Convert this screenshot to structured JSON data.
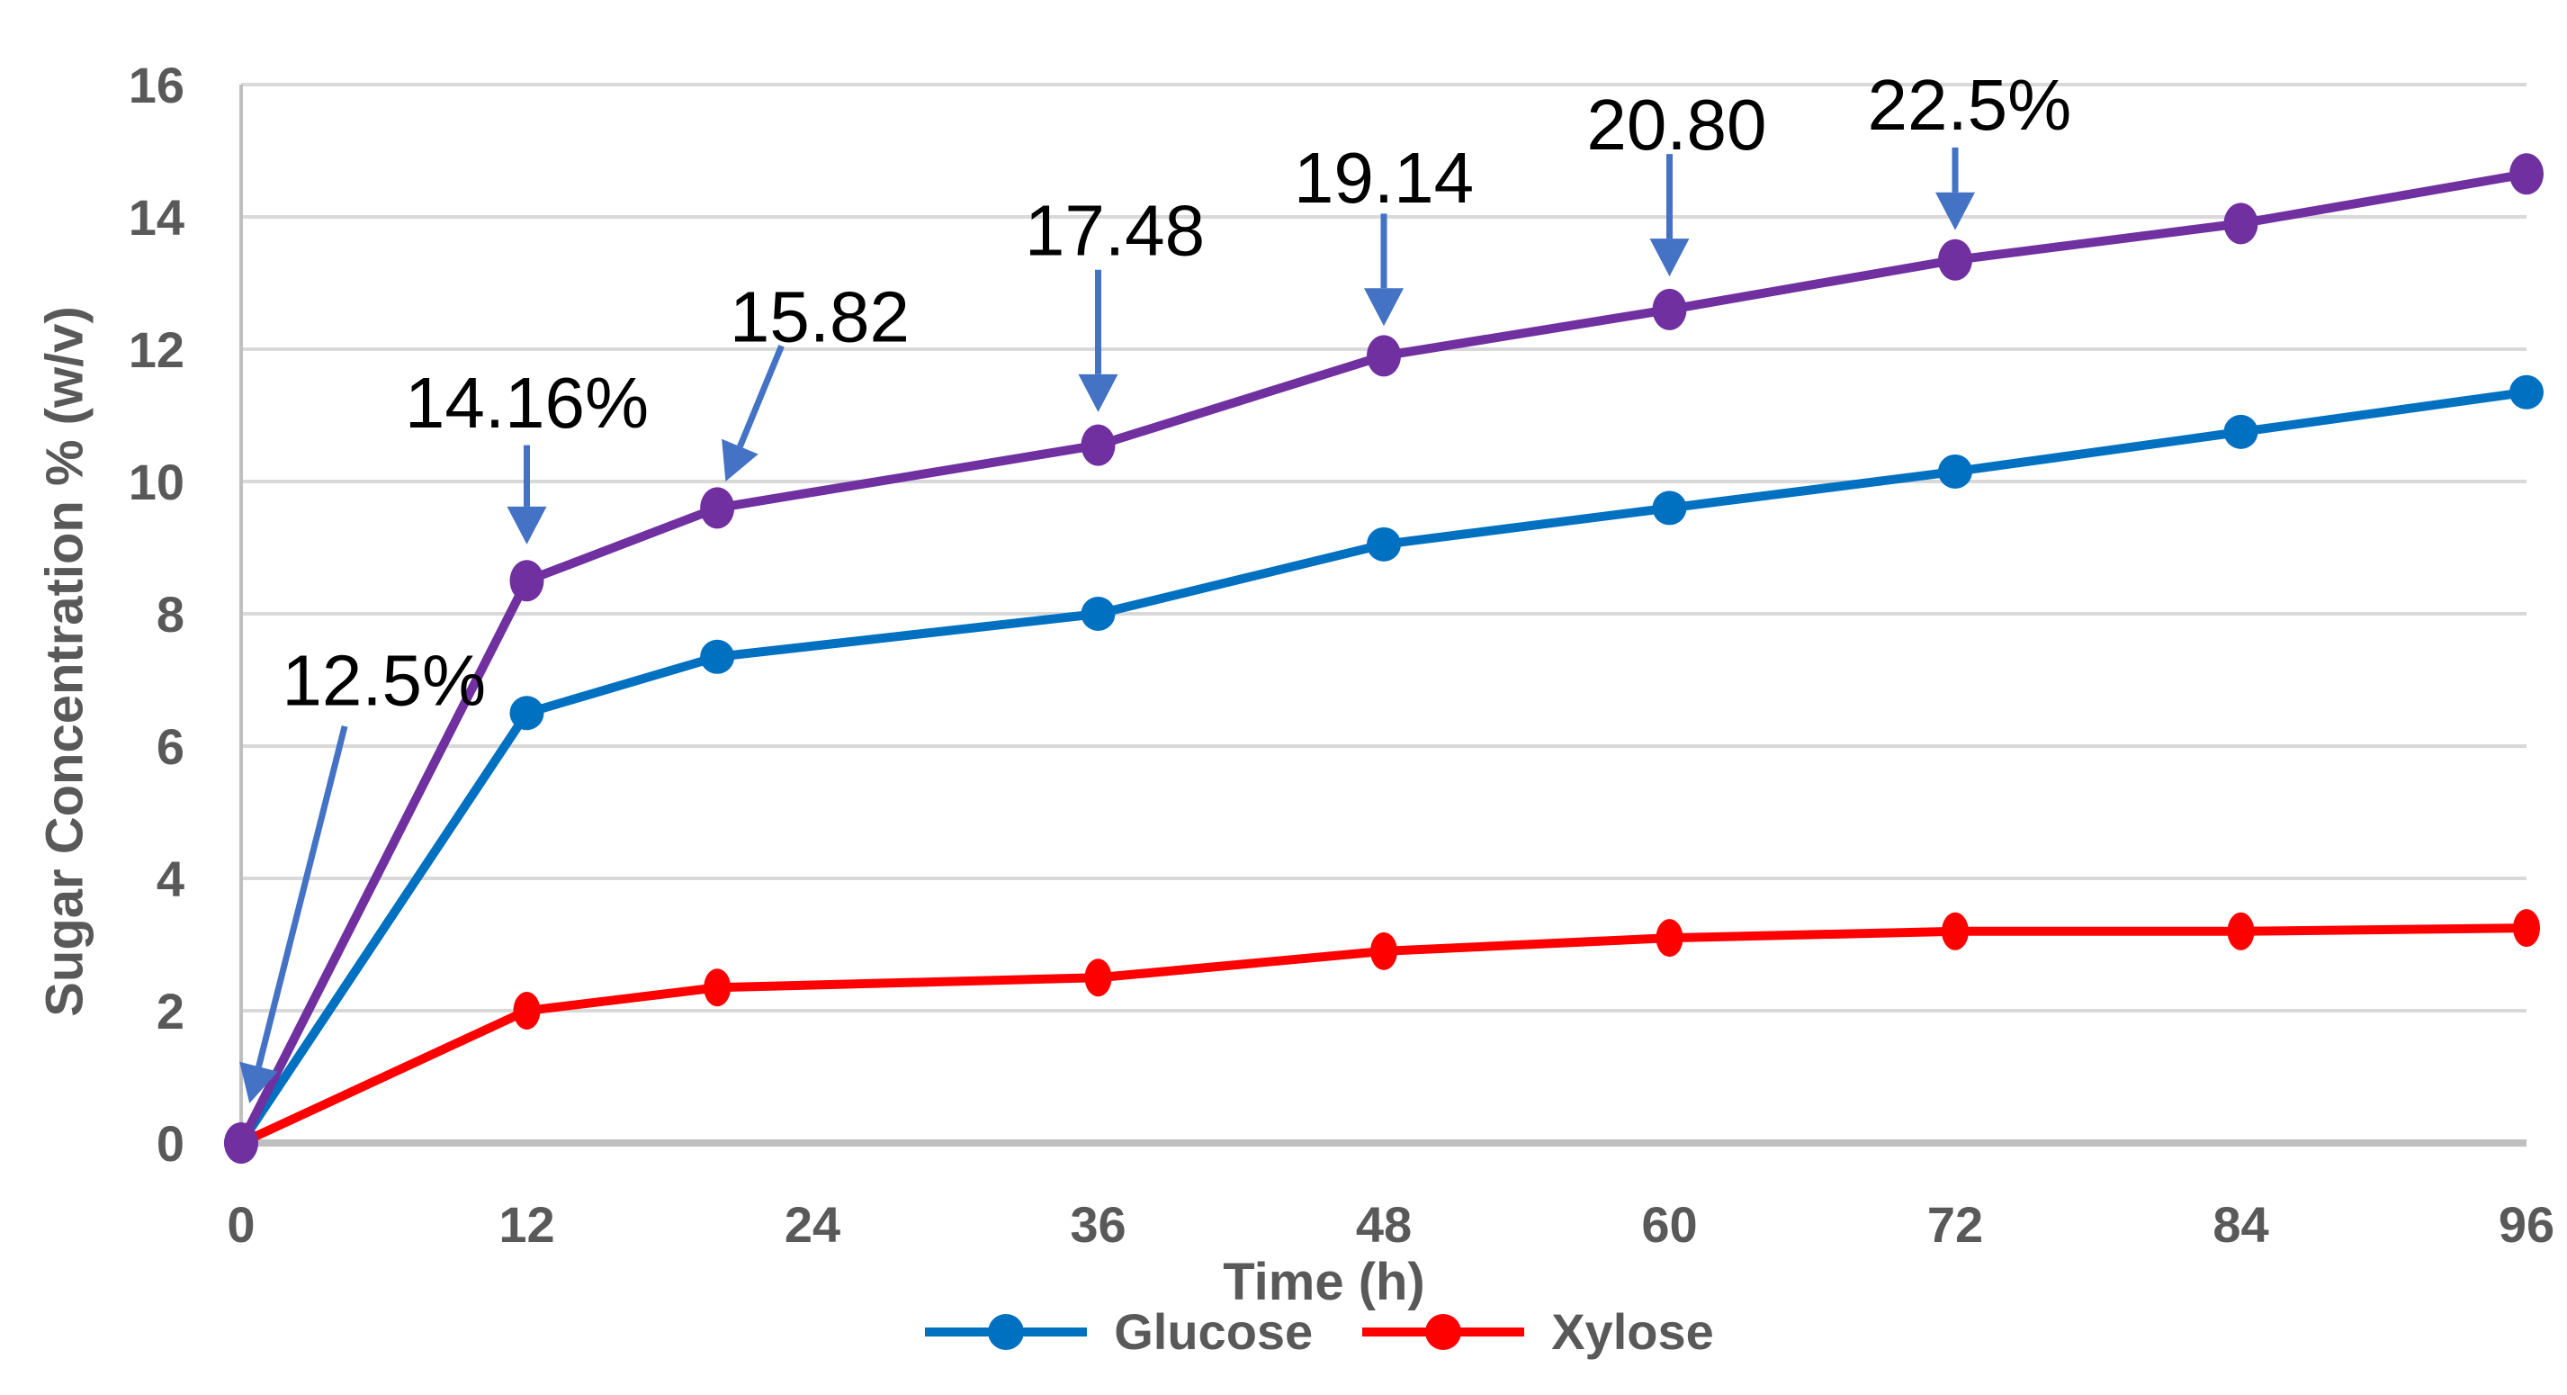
{
  "chart_data": {
    "type": "line",
    "title": "",
    "xlabel": "Time (h)",
    "ylabel": "Sugar Concentration % (w/v)",
    "x": [
      0,
      12,
      20,
      36,
      48,
      60,
      72,
      84,
      96
    ],
    "x_ticks": [
      "0",
      "12",
      "24",
      "36",
      "48",
      "60",
      "72",
      "84",
      "96"
    ],
    "x_range": [
      0,
      96
    ],
    "y_ticks": [
      "0",
      "2",
      "4",
      "6",
      "8",
      "10",
      "12",
      "14",
      "16"
    ],
    "ylim": [
      0,
      16
    ],
    "grid": "horizontal",
    "legend_position": "bottom",
    "series": [
      {
        "name": "Glucose",
        "color": "#0070C0",
        "marker": "circle",
        "in_legend": true,
        "values": [
          0,
          6.5,
          7.35,
          8.0,
          9.05,
          9.6,
          10.15,
          10.75,
          11.35
        ]
      },
      {
        "name": "Xylose",
        "color": "#FF0000",
        "marker": "circle",
        "in_legend": true,
        "values": [
          0,
          2.0,
          2.35,
          2.5,
          2.9,
          3.1,
          3.2,
          3.2,
          3.25
        ]
      },
      {
        "name": "",
        "color": "#7030A0",
        "marker": "circle",
        "in_legend": false,
        "values": [
          0,
          8.5,
          9.6,
          10.55,
          11.9,
          12.6,
          13.35,
          13.9,
          14.65
        ]
      }
    ],
    "annotations": [
      {
        "text": "12.5%",
        "label": [
          6.0,
          7.0
        ],
        "arrow_from": [
          4.35,
          6.3
        ],
        "arrow_to": [
          0.35,
          0.6
        ]
      },
      {
        "text": "14.16%",
        "label": [
          12.0,
          11.2
        ],
        "arrow_from": [
          12,
          10.55
        ],
        "arrow_to": [
          12,
          9.05
        ]
      },
      {
        "text": "15.82",
        "label": [
          24.3,
          12.5
        ],
        "arrow_from": [
          22.7,
          12.05
        ],
        "arrow_to": [
          20.35,
          10.0
        ]
      },
      {
        "text": "17.48",
        "label": [
          36.7,
          13.8
        ],
        "arrow_from": [
          36,
          13.2
        ],
        "arrow_to": [
          36,
          11.05
        ]
      },
      {
        "text": "19.14",
        "label": [
          48.0,
          14.6
        ],
        "arrow_from": [
          48,
          14.05
        ],
        "arrow_to": [
          48,
          12.35
        ]
      },
      {
        "text": "20.80",
        "label": [
          60.3,
          15.4
        ],
        "arrow_from": [
          60,
          14.95
        ],
        "arrow_to": [
          60,
          13.1
        ]
      },
      {
        "text": "22.5%",
        "label": [
          72.6,
          15.7
        ],
        "arrow_from": [
          72,
          15.05
        ],
        "arrow_to": [
          72,
          13.8
        ]
      }
    ],
    "annotation_arrow_color": "#4472C4",
    "annotation_text_color": "#000000"
  },
  "styles": {
    "grid_color": "#D9D9D9",
    "axis_line_color": "#BFBFBF",
    "tick_label_color": "#595959",
    "axis_title_color": "#595959",
    "background": "#FFFFFF"
  },
  "legend": {
    "items": [
      {
        "label": "Glucose"
      },
      {
        "label": "Xylose"
      }
    ]
  }
}
